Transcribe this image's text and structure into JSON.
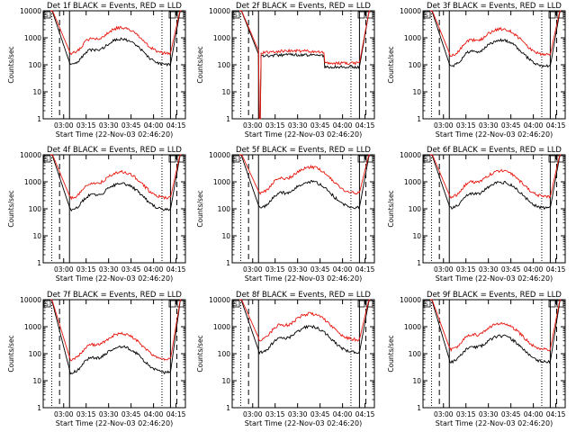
{
  "figure": {
    "colors": {
      "events": "#000000",
      "lld": "#e8140c",
      "axes": "#000000",
      "background": "#ffffff"
    },
    "panels": [
      {
        "title": "Det 1f BLACK = Events, RED = LLD",
        "profile": "normal",
        "black_ratio": 0.38,
        "red_peak": 2400,
        "black_peak": 900
      },
      {
        "title": "Det 2f BLACK = Events, RED = LLD",
        "profile": "step",
        "black_ratio": 0.72,
        "red_peak": 330,
        "black_peak": 240
      },
      {
        "title": "Det 3f BLACK = Events, RED = LLD",
        "profile": "normal",
        "black_ratio": 0.38,
        "red_peak": 2100,
        "black_peak": 800
      },
      {
        "title": "Det 4f BLACK = Events, RED = LLD",
        "profile": "normal",
        "black_ratio": 0.38,
        "red_peak": 2300,
        "black_peak": 850
      },
      {
        "title": "Det 5f BLACK = Events, RED = LLD",
        "profile": "normal",
        "black_ratio": 0.28,
        "red_peak": 3500,
        "black_peak": 1000
      },
      {
        "title": "Det 6f BLACK = Events, RED = LLD",
        "profile": "normal",
        "black_ratio": 0.38,
        "red_peak": 2500,
        "black_peak": 950
      },
      {
        "title": "Det 7f BLACK = Events, RED = LLD",
        "profile": "normal",
        "black_ratio": 0.33,
        "red_peak": 550,
        "black_peak": 180
      },
      {
        "title": "Det 8f BLACK = Events, RED = LLD",
        "profile": "normal",
        "black_ratio": 0.33,
        "red_peak": 3000,
        "black_peak": 1000
      },
      {
        "title": "Det 9f BLACK = Events, RED = LLD",
        "profile": "normal",
        "black_ratio": 0.33,
        "red_peak": 1300,
        "black_peak": 450
      }
    ],
    "xlabel": "Start Time (22-Nov-03 02:46:20)",
    "ylabel": "Counts/sec",
    "x_ticks": [
      "03:00",
      "03:15",
      "03:30",
      "03:45",
      "04:00",
      "04:15"
    ],
    "y_ticks": [
      "1",
      "10",
      "100",
      "1000",
      "10000"
    ],
    "corner_markers": [
      "S",
      "S",
      "S"
    ]
  },
  "chart_data": {
    "type": "line",
    "layout": "3x3 grid of log-scale time series",
    "x_ticks_minutes_after_start": [
      13.67,
      28.67,
      43.67,
      58.67,
      73.67,
      88.67
    ],
    "xlim_minutes": [
      0,
      95
    ],
    "ylim": [
      1,
      10000
    ],
    "y_scale": "log",
    "series_names": [
      "Events",
      "LLD"
    ],
    "grid": false
  }
}
